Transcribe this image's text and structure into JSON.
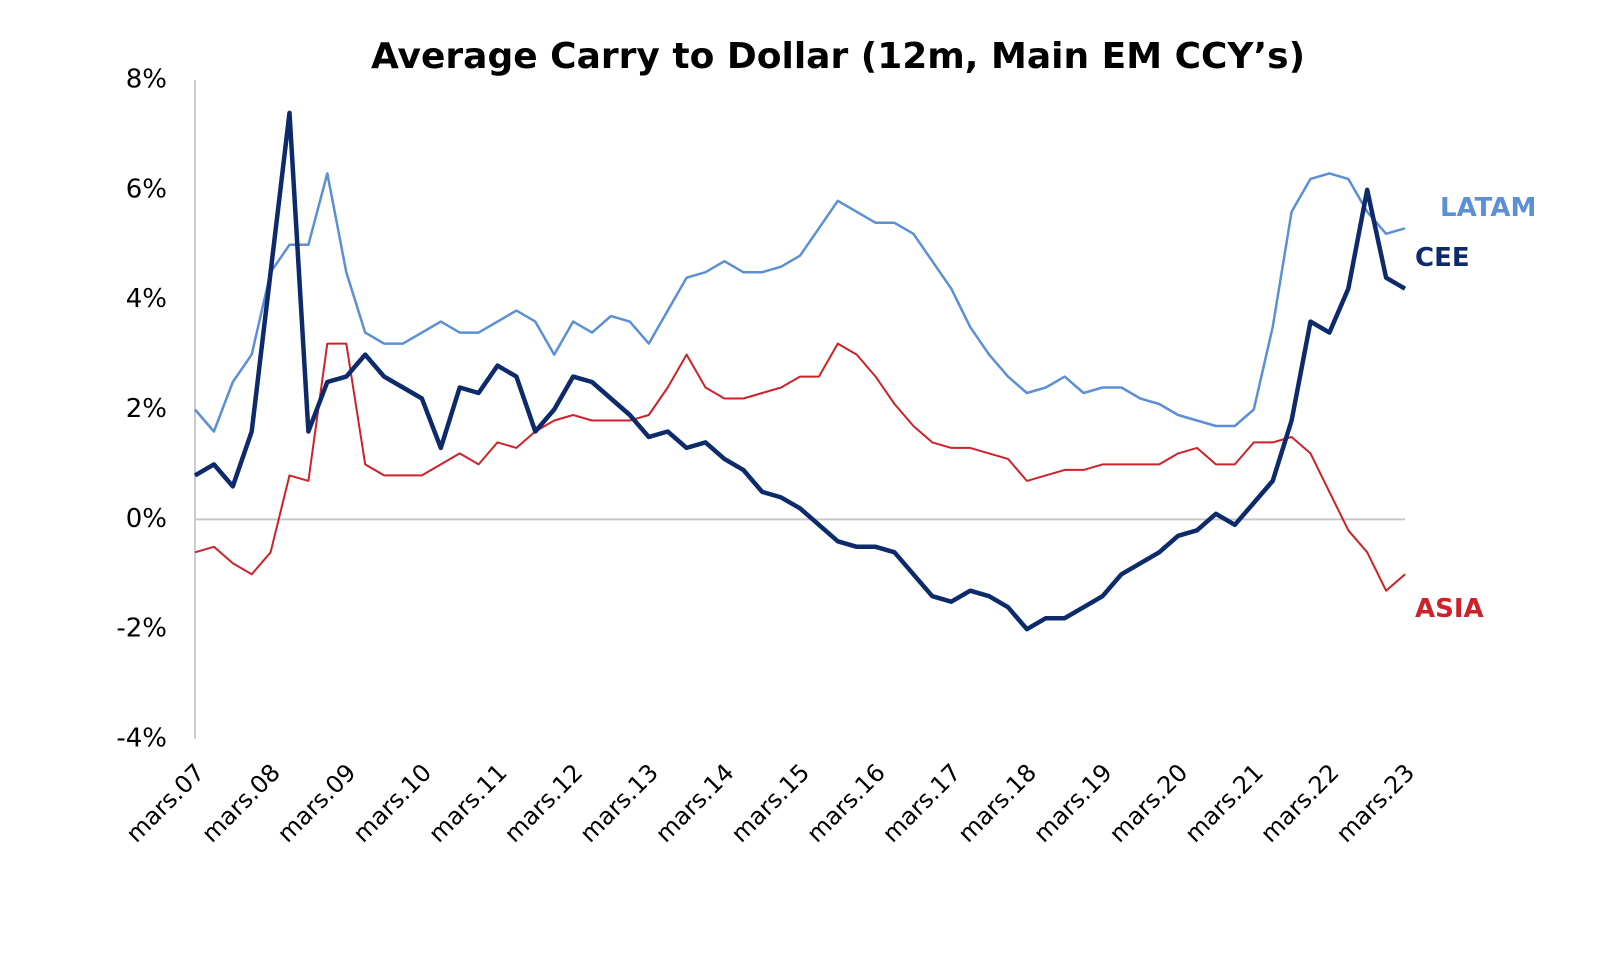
{
  "chart_data": {
    "type": "line",
    "title": "Average Carry to Dollar (12m, Main EM CCY’s)",
    "categories": [
      "mars.07",
      null,
      null,
      null,
      "mars.08",
      null,
      null,
      null,
      "mars.09",
      null,
      null,
      null,
      "mars.10",
      null,
      null,
      null,
      "mars.11",
      null,
      null,
      null,
      "mars.12",
      null,
      null,
      null,
      "mars.13",
      null,
      null,
      null,
      "mars.14",
      null,
      null,
      null,
      "mars.15",
      null,
      null,
      null,
      "mars.16",
      null,
      null,
      null,
      "mars.17",
      null,
      null,
      null,
      "mars.18",
      null,
      null,
      null,
      "mars.19",
      null,
      null,
      null,
      "mars.20",
      null,
      null,
      null,
      "mars.21",
      null,
      null,
      null,
      "mars.22",
      null,
      null,
      null,
      "mars.23"
    ],
    "series": [
      {
        "name": "LATAM",
        "color": "#5b8fd6",
        "values": [
          2.0,
          1.6,
          2.5,
          3.0,
          4.5,
          5.0,
          5.0,
          6.3,
          4.5,
          3.4,
          3.2,
          3.2,
          3.4,
          3.6,
          3.4,
          3.4,
          3.6,
          3.8,
          3.6,
          3.0,
          3.6,
          3.4,
          3.7,
          3.6,
          3.2,
          3.8,
          4.4,
          4.5,
          4.7,
          4.5,
          4.5,
          4.6,
          4.8,
          5.3,
          5.8,
          5.6,
          5.4,
          5.4,
          5.2,
          4.7,
          4.2,
          3.5,
          3.0,
          2.6,
          2.3,
          2.4,
          2.6,
          2.3,
          2.4,
          2.4,
          2.2,
          2.1,
          1.9,
          1.8,
          1.7,
          1.7,
          2.0,
          3.5,
          5.6,
          6.2,
          6.3,
          6.2,
          5.6,
          5.2,
          5.3
        ]
      },
      {
        "name": "ASIA",
        "color": "#cc2229",
        "values": [
          -0.6,
          -0.5,
          -0.8,
          -1.0,
          -0.6,
          0.8,
          0.7,
          3.2,
          3.2,
          1.0,
          0.8,
          0.8,
          0.8,
          1.0,
          1.2,
          1.0,
          1.4,
          1.3,
          1.6,
          1.8,
          1.9,
          1.8,
          1.8,
          1.8,
          1.9,
          2.4,
          3.0,
          2.4,
          2.2,
          2.2,
          2.3,
          2.4,
          2.6,
          2.6,
          3.2,
          3.0,
          2.6,
          2.1,
          1.7,
          1.4,
          1.3,
          1.3,
          1.2,
          1.1,
          0.7,
          0.8,
          0.9,
          0.9,
          1.0,
          1.0,
          1.0,
          1.0,
          1.2,
          1.3,
          1.0,
          1.0,
          1.4,
          1.4,
          1.5,
          1.2,
          0.5,
          -0.2,
          -0.6,
          -1.3,
          -1.0
        ]
      },
      {
        "name": "CEE",
        "color": "#0d2a6b",
        "values": [
          0.8,
          1.0,
          0.6,
          1.6,
          4.5,
          7.4,
          1.6,
          2.5,
          2.6,
          3.0,
          2.6,
          2.4,
          2.2,
          1.3,
          2.4,
          2.3,
          2.8,
          2.6,
          1.6,
          2.0,
          2.6,
          2.5,
          2.2,
          1.9,
          1.5,
          1.6,
          1.3,
          1.4,
          1.1,
          0.9,
          0.5,
          0.4,
          0.2,
          -0.1,
          -0.4,
          -0.5,
          -0.5,
          -0.6,
          -1.0,
          -1.4,
          -1.5,
          -1.3,
          -1.4,
          -1.6,
          -2.0,
          -1.8,
          -1.8,
          -1.6,
          -1.4,
          -1.0,
          -0.8,
          -0.6,
          -0.3,
          -0.2,
          0.1,
          -0.1,
          0.3,
          0.7,
          1.8,
          3.6,
          3.4,
          4.2,
          6.0,
          4.4,
          4.2
        ]
      }
    ],
    "ylim": [
      -4,
      8
    ],
    "yticks": [
      {
        "value": -4,
        "label": "-4%"
      },
      {
        "value": -2,
        "label": "-2%"
      },
      {
        "value": 0,
        "label": "0%"
      },
      {
        "value": 2,
        "label": "2%"
      },
      {
        "value": 4,
        "label": "4%"
      },
      {
        "value": 6,
        "label": "6%"
      },
      {
        "value": 8,
        "label": "8%"
      }
    ]
  }
}
